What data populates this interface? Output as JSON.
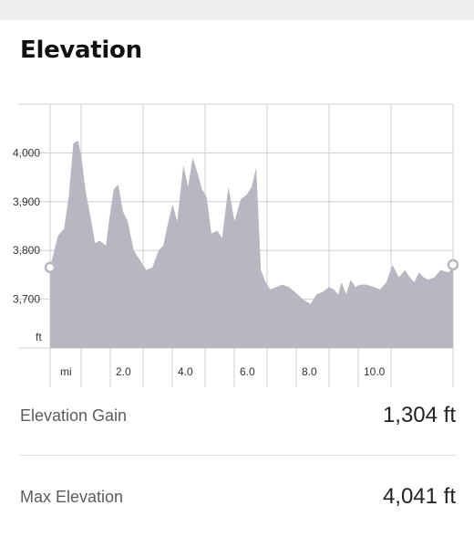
{
  "title": "Elevation",
  "colors": {
    "fill": "#b7b6c1",
    "grid": "#cfcfd3",
    "axis": "#8a8a8f",
    "marker": "#ffffff"
  },
  "chart_data": {
    "type": "area",
    "xlabel": "mi",
    "ylabel": "ft",
    "x_ticks": [
      2.0,
      4.0,
      6.0,
      8.0,
      10.0
    ],
    "x_tick_labels": [
      "2.0",
      "4.0",
      "6.0",
      "8.0",
      "10.0"
    ],
    "y_ticks": [
      3700,
      3800,
      3900,
      4000
    ],
    "y_tick_labels": [
      "3,700",
      "3,800",
      "3,900",
      "4,000"
    ],
    "xlim": [
      0.0,
      13.0
    ],
    "ylim": [
      3600,
      4100
    ],
    "grid": true,
    "x": [
      0.0,
      0.25,
      0.45,
      0.6,
      0.75,
      0.9,
      1.0,
      1.15,
      1.3,
      1.45,
      1.6,
      1.8,
      1.9,
      2.05,
      2.2,
      2.35,
      2.5,
      2.7,
      2.9,
      3.1,
      3.3,
      3.5,
      3.65,
      3.8,
      3.95,
      4.1,
      4.3,
      4.45,
      4.6,
      4.75,
      4.9,
      5.05,
      5.2,
      5.4,
      5.55,
      5.75,
      5.95,
      6.15,
      6.35,
      6.5,
      6.65,
      6.8,
      6.95,
      7.1,
      7.3,
      7.5,
      7.7,
      7.9,
      8.15,
      8.4,
      8.6,
      8.8,
      9.0,
      9.15,
      9.3,
      9.4,
      9.55,
      9.7,
      9.85,
      10.0,
      10.2,
      10.45,
      10.65,
      10.85,
      11.05,
      11.25,
      11.45,
      11.6,
      11.75,
      11.9,
      12.05,
      12.2,
      12.4,
      12.6,
      12.85,
      13.0
    ],
    "y": [
      3765,
      3830,
      3845,
      3910,
      4020,
      4025,
      3995,
      3920,
      3870,
      3815,
      3820,
      3810,
      3860,
      3925,
      3935,
      3880,
      3860,
      3800,
      3780,
      3760,
      3765,
      3800,
      3810,
      3855,
      3895,
      3860,
      3975,
      3930,
      3990,
      3960,
      3925,
      3910,
      3835,
      3840,
      3825,
      3930,
      3860,
      3905,
      3915,
      3930,
      3970,
      3760,
      3735,
      3720,
      3725,
      3730,
      3725,
      3715,
      3700,
      3690,
      3710,
      3715,
      3725,
      3720,
      3710,
      3735,
      3710,
      3740,
      3725,
      3730,
      3730,
      3725,
      3720,
      3735,
      3770,
      3745,
      3760,
      3745,
      3735,
      3755,
      3745,
      3740,
      3745,
      3760,
      3755,
      3765
    ],
    "start_marker": true,
    "end_marker": true
  },
  "stats": [
    {
      "label": "Elevation Gain",
      "value": "1,304 ft"
    },
    {
      "label": "Max Elevation",
      "value": "4,041 ft"
    }
  ]
}
